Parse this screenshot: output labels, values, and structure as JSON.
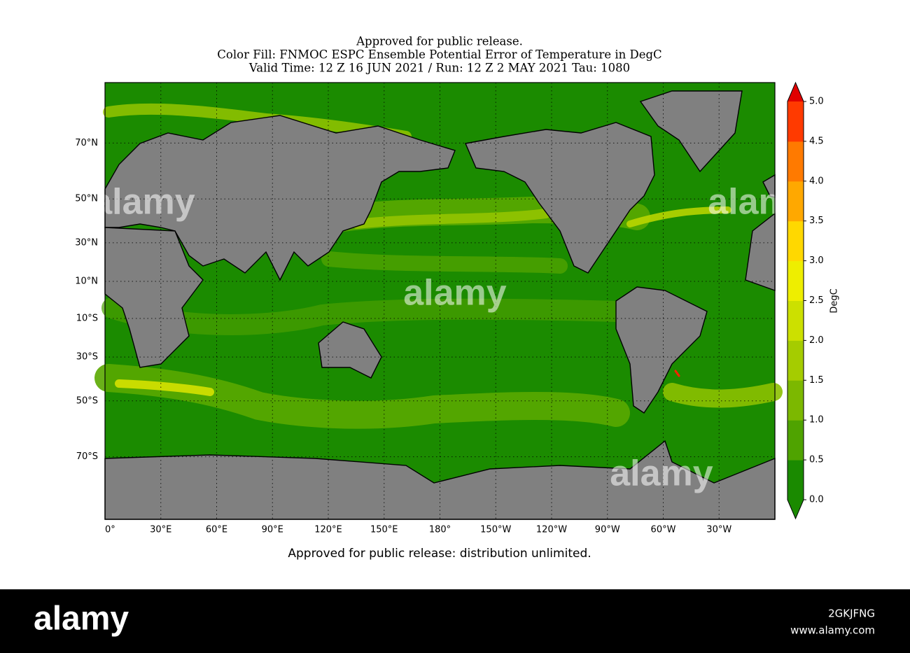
{
  "title": [
    "Approved for public release.",
    "Color Fill: FNMOC ESPC Ensemble Potential Error of Temperature in DegC",
    "Valid Time: 12 Z 16 JUN 2021 / Run: 12 Z 2 MAY 2021 Tau: 1080"
  ],
  "map": {
    "lat_ticks": [
      {
        "value": 70,
        "label": "70°N"
      },
      {
        "value": 50,
        "label": "50°N"
      },
      {
        "value": 30,
        "label": "30°N"
      },
      {
        "value": 10,
        "label": "10°N"
      },
      {
        "value": -10,
        "label": "10°S"
      },
      {
        "value": -30,
        "label": "30°S"
      },
      {
        "value": -50,
        "label": "50°S"
      },
      {
        "value": -70,
        "label": "70°S"
      }
    ],
    "lon_ticks": [
      {
        "value": 0,
        "label": "0°"
      },
      {
        "value": 30,
        "label": "30°E"
      },
      {
        "value": 60,
        "label": "60°E"
      },
      {
        "value": 90,
        "label": "90°E"
      },
      {
        "value": 120,
        "label": "120°E"
      },
      {
        "value": 150,
        "label": "150°E"
      },
      {
        "value": 180,
        "label": "180°"
      },
      {
        "value": -150,
        "label": "150°W"
      },
      {
        "value": -120,
        "label": "120°W"
      },
      {
        "value": -90,
        "label": "90°W"
      },
      {
        "value": -60,
        "label": "60°W"
      },
      {
        "value": -30,
        "label": "30°W"
      }
    ]
  },
  "colorbar": {
    "label": "DegC",
    "lim": [
      0,
      5
    ],
    "ticks": [
      {
        "value": 0,
        "label": "0.0"
      },
      {
        "value": 0.5,
        "label": "0.5"
      },
      {
        "value": 1,
        "label": "1.0"
      },
      {
        "value": 1.5,
        "label": "1.5"
      },
      {
        "value": 2,
        "label": "2.0"
      },
      {
        "value": 2.5,
        "label": "2.5"
      },
      {
        "value": 3,
        "label": "3.0"
      },
      {
        "value": 3.5,
        "label": "3.5"
      },
      {
        "value": 4,
        "label": "4.0"
      },
      {
        "value": 4.5,
        "label": "4.5"
      },
      {
        "value": 5,
        "label": "5.0"
      }
    ],
    "colors": [
      "#1a8a00",
      "#4fa300",
      "#7cb800",
      "#a5cc00",
      "#cce000",
      "#eeee00",
      "#ffd800",
      "#ffa800",
      "#ff7a00",
      "#ff3a00"
    ],
    "under_color": "#1a8a00",
    "over_color": "#e00000"
  },
  "footer": "Approved for public release: distribution unlimited.",
  "watermark": "alamy",
  "banner": {
    "logo": "alamy",
    "image_id": "2GKJFNG",
    "url": "www.alamy.com"
  }
}
